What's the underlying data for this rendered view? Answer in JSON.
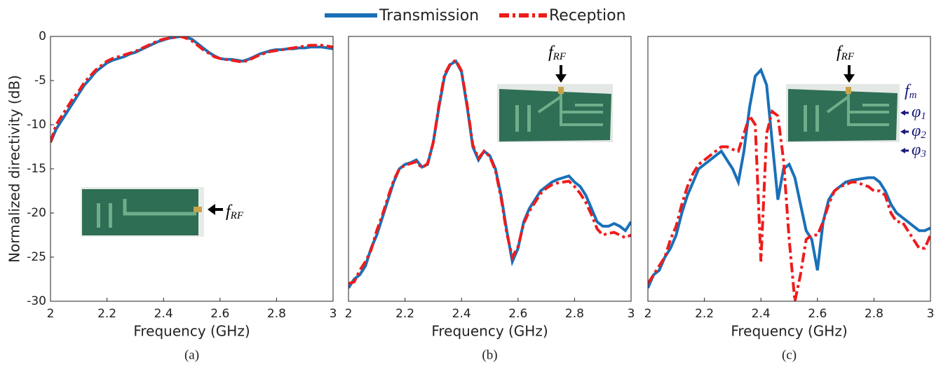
{
  "legend": [
    {
      "name": "Transmission",
      "color": "#1a70b8",
      "dash": "none"
    },
    {
      "name": "Reception",
      "color": "#ee1c1c",
      "dash": "14 5 4 5"
    }
  ],
  "chart_data": [
    {
      "type": "line",
      "ylabel": "Normalized directivity (dB)",
      "xlabel": "Frequency (GHz)",
      "caption": "(a)",
      "xlim": [
        2,
        3
      ],
      "xticks": [
        2,
        2.2,
        2.4,
        2.6,
        2.8,
        3
      ],
      "ylim": [
        -30,
        0
      ],
      "yticks": [
        0,
        -5,
        -10,
        -15,
        -20,
        -25,
        -30
      ],
      "annotations": [
        {
          "text": "f",
          "subscript": "RF"
        }
      ],
      "x": [
        2,
        2.02,
        2.04,
        2.06,
        2.08,
        2.1,
        2.12,
        2.14,
        2.16,
        2.18,
        2.2,
        2.22,
        2.24,
        2.26,
        2.28,
        2.3,
        2.32,
        2.34,
        2.36,
        2.38,
        2.4,
        2.42,
        2.44,
        2.46,
        2.48,
        2.5,
        2.52,
        2.54,
        2.56,
        2.58,
        2.6,
        2.62,
        2.64,
        2.66,
        2.68,
        2.7,
        2.72,
        2.74,
        2.76,
        2.78,
        2.8,
        2.82,
        2.84,
        2.86,
        2.88,
        2.9,
        2.92,
        2.94,
        2.96,
        2.98,
        3
      ],
      "series": [
        {
          "values": [
            -12,
            -10.5,
            -9.5,
            -8.5,
            -7.5,
            -6.5,
            -5.5,
            -4.8,
            -4,
            -3.5,
            -3,
            -2.7,
            -2.5,
            -2.3,
            -2,
            -1.8,
            -1.5,
            -1.2,
            -0.9,
            -0.6,
            -0.4,
            -0.2,
            -0.1,
            0,
            -0.1,
            -0.3,
            -0.8,
            -1.3,
            -1.8,
            -2.2,
            -2.5,
            -2.6,
            -2.6,
            -2.7,
            -2.8,
            -2.6,
            -2.3,
            -2,
            -1.8,
            -1.6,
            -1.5,
            -1.5,
            -1.4,
            -1.4,
            -1.3,
            -1.3,
            -1.2,
            -1.2,
            -1.2,
            -1.3,
            -1.4
          ]
        },
        {
          "values": [
            -12,
            -10,
            -9,
            -8,
            -7,
            -6.2,
            -5.2,
            -4.5,
            -3.8,
            -3.3,
            -2.8,
            -2.5,
            -2.3,
            -2.1,
            -1.9,
            -1.7,
            -1.4,
            -1.1,
            -0.8,
            -0.5,
            -0.3,
            -0.2,
            -0.1,
            0,
            -0.2,
            -0.5,
            -1,
            -1.5,
            -1.9,
            -2.3,
            -2.5,
            -2.6,
            -2.7,
            -2.8,
            -2.9,
            -2.7,
            -2.4,
            -2.1,
            -1.9,
            -1.7,
            -1.6,
            -1.5,
            -1.4,
            -1.3,
            -1.2,
            -1.1,
            -1,
            -1,
            -1,
            -1.1,
            -1.2
          ]
        }
      ]
    },
    {
      "type": "line",
      "xlabel": "Frequency (GHz)",
      "caption": "(b)",
      "xlim": [
        2,
        3
      ],
      "xticks": [
        2,
        2.2,
        2.4,
        2.6,
        2.8,
        3
      ],
      "ylim": [
        -30,
        0
      ],
      "annotations": [
        {
          "text": "f",
          "subscript": "RF"
        }
      ],
      "x": [
        2,
        2.02,
        2.04,
        2.06,
        2.08,
        2.1,
        2.12,
        2.14,
        2.16,
        2.18,
        2.2,
        2.22,
        2.24,
        2.26,
        2.28,
        2.3,
        2.32,
        2.34,
        2.36,
        2.38,
        2.4,
        2.42,
        2.44,
        2.46,
        2.48,
        2.5,
        2.52,
        2.54,
        2.56,
        2.58,
        2.6,
        2.62,
        2.64,
        2.66,
        2.68,
        2.7,
        2.72,
        2.74,
        2.76,
        2.78,
        2.8,
        2.82,
        2.84,
        2.86,
        2.88,
        2.9,
        2.92,
        2.94,
        2.96,
        2.98,
        3
      ],
      "series": [
        {
          "values": [
            -28.5,
            -27.5,
            -27,
            -26,
            -24,
            -22.5,
            -20.5,
            -18.5,
            -16.5,
            -15,
            -14.5,
            -14.3,
            -14,
            -14.8,
            -14.5,
            -12,
            -8,
            -4.5,
            -3.2,
            -2.8,
            -4,
            -8,
            -12.5,
            -14,
            -13,
            -13.5,
            -15,
            -18,
            -22,
            -25.5,
            -24,
            -21,
            -19.5,
            -18.5,
            -17.5,
            -17,
            -16.5,
            -16.2,
            -16,
            -15.8,
            -16.5,
            -17,
            -18,
            -19.5,
            -21,
            -21.5,
            -21.5,
            -21.2,
            -21.5,
            -22,
            -21
          ]
        },
        {
          "values": [
            -28,
            -27.8,
            -26.5,
            -25.5,
            -24.2,
            -22,
            -20.2,
            -18.2,
            -16.3,
            -15,
            -14.6,
            -14.4,
            -14.2,
            -14.9,
            -14.4,
            -12,
            -7.8,
            -4.3,
            -3.1,
            -2.7,
            -3.9,
            -7.8,
            -12.3,
            -13.8,
            -13,
            -13.6,
            -15.2,
            -18.3,
            -22.3,
            -25,
            -23.8,
            -21.2,
            -19.8,
            -18.8,
            -17.8,
            -17.2,
            -16.8,
            -16.6,
            -16.5,
            -16.4,
            -17,
            -17.8,
            -18.8,
            -20.2,
            -21.8,
            -22.5,
            -22.3,
            -22.2,
            -22.5,
            -22.8,
            -22.5
          ]
        }
      ]
    },
    {
      "type": "line",
      "xlabel": "Frequency (GHz)",
      "caption": "(c)",
      "xlim": [
        2,
        3
      ],
      "xticks": [
        2,
        2.2,
        2.4,
        2.6,
        2.8,
        3
      ],
      "ylim": [
        -30,
        0
      ],
      "annotations": [
        {
          "text": "f",
          "subscript": "RF"
        },
        {
          "text": "f",
          "subscript": "m"
        },
        {
          "text": "φ",
          "subscript": "1"
        },
        {
          "text": "φ",
          "subscript": "2"
        },
        {
          "text": "φ",
          "subscript": "3"
        }
      ],
      "x": [
        2,
        2.02,
        2.04,
        2.06,
        2.08,
        2.1,
        2.12,
        2.14,
        2.16,
        2.18,
        2.2,
        2.22,
        2.24,
        2.26,
        2.28,
        2.3,
        2.32,
        2.34,
        2.36,
        2.38,
        2.4,
        2.42,
        2.44,
        2.46,
        2.48,
        2.5,
        2.52,
        2.54,
        2.56,
        2.58,
        2.6,
        2.62,
        2.64,
        2.66,
        2.68,
        2.7,
        2.72,
        2.74,
        2.76,
        2.78,
        2.8,
        2.82,
        2.84,
        2.86,
        2.88,
        2.9,
        2.92,
        2.94,
        2.96,
        2.98,
        3
      ],
      "series": [
        {
          "values": [
            -28.5,
            -27,
            -26.5,
            -25,
            -24,
            -22.5,
            -20,
            -18,
            -16.5,
            -15,
            -14.5,
            -14,
            -13.5,
            -13,
            -14,
            -15,
            -16.5,
            -13,
            -8,
            -4.5,
            -3.8,
            -5.5,
            -12,
            -18.5,
            -15,
            -14.5,
            -16,
            -19,
            -22,
            -23,
            -26.5,
            -21,
            -18.5,
            -17.5,
            -17,
            -16.5,
            -16.3,
            -16.2,
            -16.1,
            -16,
            -16,
            -16.5,
            -17.5,
            -19,
            -20,
            -20.5,
            -21,
            -21.5,
            -22,
            -22,
            -21.7
          ]
        },
        {
          "values": [
            -28,
            -27,
            -26,
            -25,
            -23,
            -21.5,
            -19,
            -17,
            -15.5,
            -14.5,
            -14,
            -13.5,
            -13,
            -12.5,
            -12.5,
            -12.8,
            -13,
            -11,
            -9,
            -10,
            -25.5,
            -11,
            -8.5,
            -9,
            -14,
            -23,
            -30,
            -27,
            -23,
            -22.5,
            -22.5,
            -21,
            -19,
            -17.5,
            -17,
            -16.8,
            -16.5,
            -16.5,
            -16.8,
            -17,
            -17.5,
            -17.5,
            -18,
            -20,
            -21,
            -21,
            -22,
            -23,
            -24,
            -24,
            -22.5
          ]
        }
      ]
    }
  ]
}
